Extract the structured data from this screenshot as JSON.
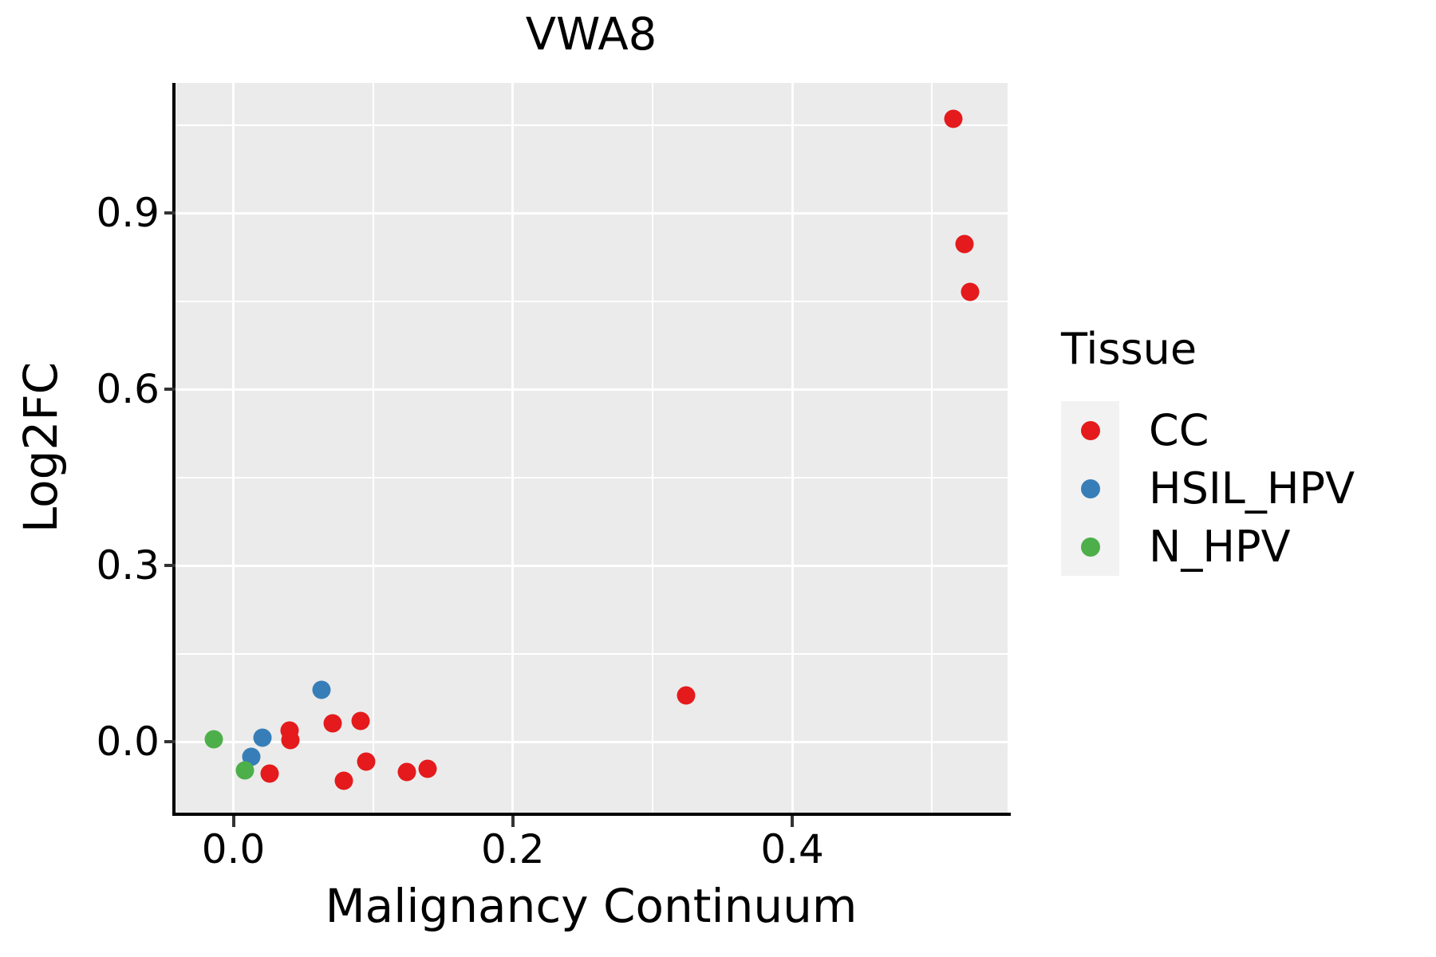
{
  "figure": {
    "title": "VWA8"
  },
  "chart_data": {
    "type": "scatter",
    "title": "VWA8",
    "xlabel": "Malignancy Continuum",
    "ylabel": "Log2FC",
    "legend_title": "Tissue",
    "legend_position": "right",
    "grid": true,
    "xlim": [
      -0.0414,
      0.5541
    ],
    "ylim": [
      -0.1208,
      1.1213
    ],
    "x_ticks": [
      {
        "value": 0.0,
        "label": "0.0"
      },
      {
        "value": 0.2,
        "label": "0.2"
      },
      {
        "value": 0.4,
        "label": "0.4"
      }
    ],
    "y_ticks": [
      {
        "value": 0.0,
        "label": "0.0"
      },
      {
        "value": 0.3,
        "label": "0.3"
      },
      {
        "value": 0.6,
        "label": "0.6"
      },
      {
        "value": 0.9,
        "label": "0.9"
      }
    ],
    "x_minor_ticks": [
      0.1,
      0.3,
      0.5
    ],
    "y_minor_ticks": [
      0.15,
      0.45,
      0.75,
      1.05
    ],
    "series": [
      {
        "name": "CC",
        "color": "#E41A1C",
        "points": [
          [
            0.515,
            1.06
          ],
          [
            0.523,
            0.847
          ],
          [
            0.527,
            0.766
          ],
          [
            0.324,
            0.079
          ],
          [
            0.04,
            0.019
          ],
          [
            0.041,
            0.003
          ],
          [
            0.071,
            0.031
          ],
          [
            0.091,
            0.035
          ],
          [
            0.026,
            -0.054
          ],
          [
            0.079,
            -0.067
          ],
          [
            0.095,
            -0.034
          ],
          [
            0.124,
            -0.052
          ],
          [
            0.139,
            -0.046
          ]
        ]
      },
      {
        "name": "HSIL_HPV",
        "color": "#377EB8",
        "points": [
          [
            0.021,
            0.007
          ],
          [
            0.013,
            -0.026
          ],
          [
            0.063,
            0.088
          ]
        ]
      },
      {
        "name": "N_HPV",
        "color": "#4DAF4A",
        "points": [
          [
            -0.014,
            0.004
          ],
          [
            0.008,
            -0.049
          ]
        ]
      }
    ]
  },
  "legend": {
    "title": "Tissue",
    "entries": [
      {
        "label": "CC",
        "color": "#E41A1C"
      },
      {
        "label": "HSIL_HPV",
        "color": "#377EB8"
      },
      {
        "label": "N_HPV",
        "color": "#4DAF4A"
      }
    ]
  },
  "style": {
    "panel_bg": "#EBEBEB",
    "grid_color": "#FFFFFF",
    "legend_key_bg": "#F2F2F2",
    "point_color_cc": "#E41A1C",
    "point_color_hsil_hpv": "#377EB8",
    "point_color_n_hpv": "#4DAF4A",
    "spine_color": "#000000",
    "tick_color": "#333333",
    "text_color": "#000000"
  }
}
